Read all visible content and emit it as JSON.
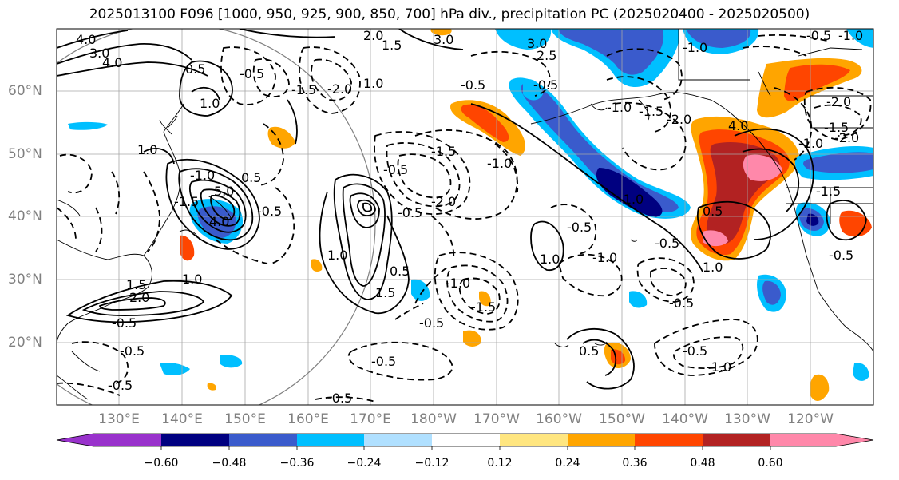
{
  "title": "2025013100 F096 [1000, 950, 925, 900, 850, 700] hPa div., precipitation PC (2025020400 - 2025020500)",
  "lat_labels": [
    "60°N",
    "50°N",
    "40°N",
    "30°N",
    "20°N"
  ],
  "lon_labels": [
    "130°E",
    "140°E",
    "150°E",
    "160°E",
    "170°E",
    "180°W",
    "170°W",
    "160°W",
    "150°W",
    "140°W",
    "130°W",
    "120°W"
  ],
  "colorbar": {
    "ticks": [
      "−0.60",
      "−0.48",
      "−0.36",
      "−0.24",
      "−0.12",
      "0.12",
      "0.24",
      "0.36",
      "0.48",
      "0.60"
    ],
    "colors": [
      "#9932cc",
      "#000080",
      "#3a5bcc",
      "#00bfff",
      "#b0e0ff",
      "#ffffff",
      "#ffe680",
      "#ffa500",
      "#ff4500",
      "#b22222",
      "#ff88aa"
    ]
  },
  "contour_labels": [
    {
      "text": "4.0",
      "pos": "top-left"
    },
    {
      "text": "3.0"
    },
    {
      "text": "2.0"
    },
    {
      "text": "1.5"
    },
    {
      "text": "1.0"
    },
    {
      "text": "0.5"
    },
    {
      "text": "-0.5"
    },
    {
      "text": "-1.0"
    },
    {
      "text": "-1.5"
    },
    {
      "text": "-2.0"
    }
  ]
}
